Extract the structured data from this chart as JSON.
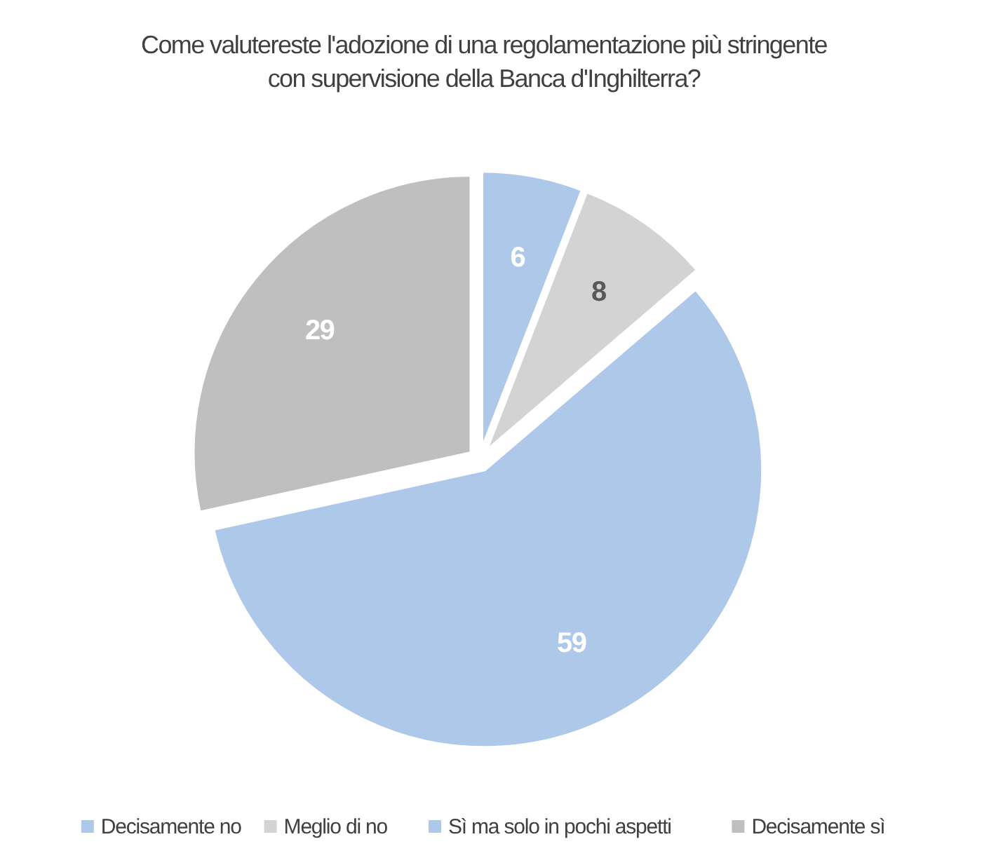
{
  "chart_data": {
    "type": "pie",
    "title": "Come valutereste l'adozione di una regolamentazione più stringente con supervisione della Banca d'Inghilterra?",
    "categories": [
      "Decisamente no",
      "Meglio di no",
      "Sì ma solo in pochi aspetti",
      "Decisamente sì"
    ],
    "values": [
      6,
      8,
      59,
      29
    ],
    "colors": [
      "#adc8e9",
      "#d3d3d3",
      "#adc8e9",
      "#bfbfbf"
    ],
    "data_labels": true,
    "legend": "bottom"
  }
}
